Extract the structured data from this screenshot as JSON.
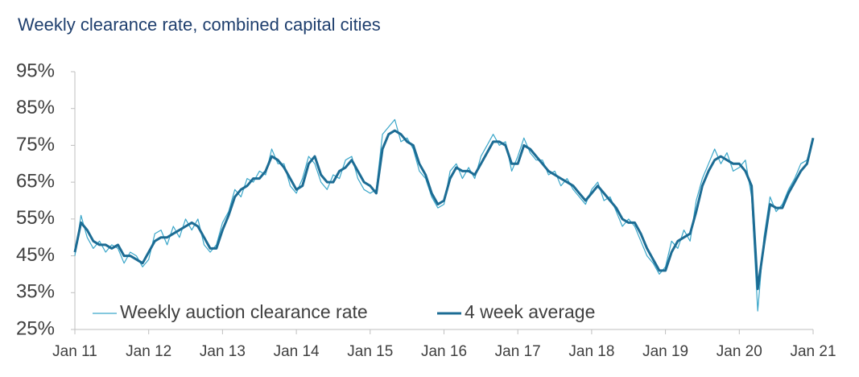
{
  "chart_data": {
    "type": "line",
    "title": "Weekly clearance rate, combined capital cities",
    "x": [
      "2011-01",
      "2011-02",
      "2011-03",
      "2011-04",
      "2011-05",
      "2011-06",
      "2011-07",
      "2011-08",
      "2011-09",
      "2011-10",
      "2011-11",
      "2011-12",
      "2012-01",
      "2012-02",
      "2012-03",
      "2012-04",
      "2012-05",
      "2012-06",
      "2012-07",
      "2012-08",
      "2012-09",
      "2012-10",
      "2012-11",
      "2012-12",
      "2013-01",
      "2013-02",
      "2013-03",
      "2013-04",
      "2013-05",
      "2013-06",
      "2013-07",
      "2013-08",
      "2013-09",
      "2013-10",
      "2013-11",
      "2013-12",
      "2014-01",
      "2014-02",
      "2014-03",
      "2014-04",
      "2014-05",
      "2014-06",
      "2014-07",
      "2014-08",
      "2014-09",
      "2014-10",
      "2014-11",
      "2014-12",
      "2015-01",
      "2015-02",
      "2015-03",
      "2015-04",
      "2015-05",
      "2015-06",
      "2015-07",
      "2015-08",
      "2015-09",
      "2015-10",
      "2015-11",
      "2015-12",
      "2016-01",
      "2016-02",
      "2016-03",
      "2016-04",
      "2016-05",
      "2016-06",
      "2016-07",
      "2016-08",
      "2016-09",
      "2016-10",
      "2016-11",
      "2016-12",
      "2017-01",
      "2017-02",
      "2017-03",
      "2017-04",
      "2017-05",
      "2017-06",
      "2017-07",
      "2017-08",
      "2017-09",
      "2017-10",
      "2017-11",
      "2017-12",
      "2018-01",
      "2018-02",
      "2018-03",
      "2018-04",
      "2018-05",
      "2018-06",
      "2018-07",
      "2018-08",
      "2018-09",
      "2018-10",
      "2018-11",
      "2018-12",
      "2019-01",
      "2019-02",
      "2019-03",
      "2019-04",
      "2019-05",
      "2019-06",
      "2019-07",
      "2019-08",
      "2019-09",
      "2019-10",
      "2019-11",
      "2019-12",
      "2020-01",
      "2020-02",
      "2020-03",
      "2020-04",
      "2020-05",
      "2020-06",
      "2020-07",
      "2020-08",
      "2020-09",
      "2020-10",
      "2020-11",
      "2020-12",
      "2021-01"
    ],
    "series": [
      {
        "name": "Weekly auction clearance rate",
        "color": "#3aa6c9",
        "width": 1.2,
        "values": [
          45,
          56,
          50,
          47,
          49,
          46,
          48,
          47,
          43,
          46,
          45,
          42,
          44,
          51,
          52,
          48,
          53,
          50,
          55,
          52,
          55,
          48,
          46,
          48,
          54,
          57,
          63,
          61,
          66,
          65,
          68,
          67,
          74,
          70,
          70,
          64,
          62,
          66,
          72,
          70,
          65,
          63,
          67,
          66,
          71,
          72,
          66,
          63,
          62,
          63,
          78,
          80,
          82,
          76,
          77,
          74,
          68,
          66,
          61,
          58,
          59,
          68,
          70,
          66,
          69,
          66,
          72,
          75,
          78,
          75,
          76,
          68,
          72,
          77,
          73,
          71,
          71,
          67,
          68,
          64,
          66,
          63,
          61,
          59,
          63,
          65,
          60,
          61,
          57,
          53,
          55,
          53,
          49,
          45,
          43,
          40,
          42,
          49,
          47,
          52,
          49,
          60,
          66,
          70,
          74,
          70,
          73,
          68,
          69,
          71,
          61,
          30,
          50,
          61,
          57,
          59,
          63,
          66,
          70,
          71,
          77
        ]
      },
      {
        "name": "4 week average",
        "color": "#1c6c94",
        "width": 3,
        "values": [
          46,
          54,
          52,
          49,
          48,
          48,
          47,
          48,
          45,
          45,
          44,
          43,
          46,
          49,
          50,
          50,
          51,
          52,
          53,
          54,
          53,
          50,
          47,
          47,
          52,
          56,
          61,
          63,
          64,
          66,
          66,
          68,
          72,
          71,
          69,
          66,
          63,
          64,
          70,
          72,
          67,
          65,
          65,
          68,
          69,
          71,
          68,
          65,
          64,
          62,
          74,
          78,
          79,
          78,
          76,
          75,
          70,
          67,
          62,
          59,
          60,
          66,
          69,
          68,
          68,
          67,
          70,
          73,
          76,
          76,
          75,
          70,
          70,
          75,
          74,
          72,
          70,
          68,
          67,
          66,
          65,
          64,
          62,
          60,
          62,
          64,
          62,
          60,
          58,
          55,
          54,
          54,
          51,
          47,
          44,
          41,
          41,
          46,
          49,
          50,
          51,
          57,
          64,
          68,
          71,
          72,
          71,
          70,
          70,
          68,
          64,
          36,
          48,
          59,
          58,
          58,
          62,
          65,
          68,
          70,
          77
        ]
      }
    ],
    "ylim": [
      25,
      95
    ],
    "yticks": [
      {
        "value": 25,
        "label": "25%"
      },
      {
        "value": 35,
        "label": "35%"
      },
      {
        "value": 45,
        "label": "45%"
      },
      {
        "value": 55,
        "label": "55%"
      },
      {
        "value": 65,
        "label": "65%"
      },
      {
        "value": 75,
        "label": "75%"
      },
      {
        "value": 85,
        "label": "85%"
      },
      {
        "value": 95,
        "label": "95%"
      }
    ],
    "xticks": [
      {
        "value": "2011-01",
        "label": "Jan 11"
      },
      {
        "value": "2012-01",
        "label": "Jan 12"
      },
      {
        "value": "2013-01",
        "label": "Jan 13"
      },
      {
        "value": "2014-01",
        "label": "Jan 14"
      },
      {
        "value": "2015-01",
        "label": "Jan 15"
      },
      {
        "value": "2016-01",
        "label": "Jan 16"
      },
      {
        "value": "2017-01",
        "label": "Jan 17"
      },
      {
        "value": "2018-01",
        "label": "Jan 18"
      },
      {
        "value": "2019-01",
        "label": "Jan 19"
      },
      {
        "value": "2020-01",
        "label": "Jan 20"
      },
      {
        "value": "2021-01",
        "label": "Jan 21"
      }
    ],
    "legend": "lower left"
  }
}
